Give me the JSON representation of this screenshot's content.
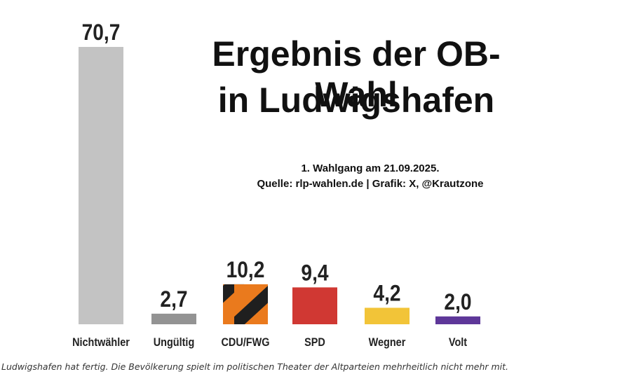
{
  "chart_data": {
    "type": "bar",
    "title": [
      "Ergebnis der OB-Wahl",
      "in Ludwigshafen"
    ],
    "subtitle": [
      "1. Wahlgang am 21.09.2025.",
      "Quelle: rlp-wahlen.de | Grafik: X, @Krautzone"
    ],
    "categories": [
      "Nichtwähler",
      "Ungültig",
      "CDU/FWG",
      "SPD",
      "Wegner",
      "Volt"
    ],
    "values": [
      70.7,
      2.7,
      10.2,
      9.4,
      4.2,
      2.0
    ],
    "value_labels": [
      "70,7",
      "2,7",
      "10,2",
      "9,4",
      "4,2",
      "2,0"
    ],
    "colors": [
      "#c3c3c3",
      "#939393",
      "#ea7a1d",
      "#d03833",
      "#f2c438",
      "#5e3799"
    ],
    "special_fill": [
      null,
      null,
      "orange-black-diagonal",
      null,
      null,
      null
    ],
    "ylim": [
      0,
      70.7
    ],
    "xlabel": "",
    "ylabel": "",
    "grid": false,
    "legend": "none"
  },
  "caption": "Ludwigshafen hat fertig. Die Bevölkerung spielt im politischen Theater der Altparteien mehrheitlich nicht mehr mit."
}
